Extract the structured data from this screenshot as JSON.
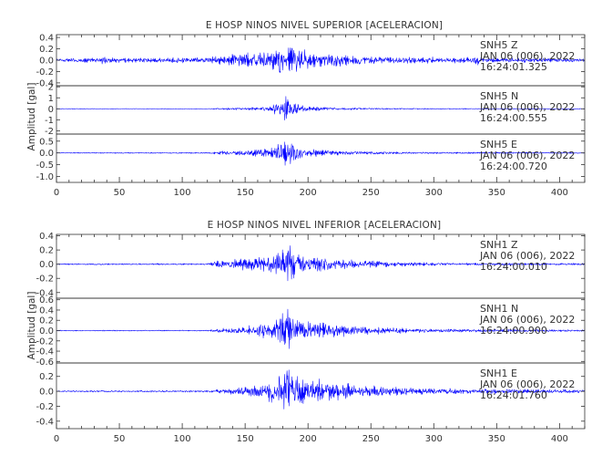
{
  "colors": {
    "trace": "#0000ff",
    "axis": "#333333",
    "text": "#333333",
    "background": "#ffffff"
  },
  "chart_data": [
    {
      "type": "line",
      "title": "E HOSP NINOS NIVEL SUPERIOR [ACELERACION]",
      "ylabel": "Amplitud [gal]",
      "xlim": [
        0,
        420
      ],
      "xticks": [
        0,
        50,
        100,
        150,
        200,
        250,
        300,
        350,
        400
      ],
      "grid": false,
      "series": [
        {
          "name": "SNH5   Z",
          "date": "JAN 06 (006), 2022",
          "time": "16:24:01.325",
          "ylim": [
            -0.45,
            0.45
          ],
          "yticks": [
            -0.4,
            -0.2,
            0.0,
            0.2,
            0.4
          ],
          "ytick_labels": [
            "-0.4",
            "-0.2",
            "0.0",
            "0.2",
            "0.4"
          ],
          "noise_level": 0.045,
          "envelope": [
            [
              0,
              1
            ],
            [
              35,
              1.2
            ],
            [
              38,
              2.6
            ],
            [
              41,
              1.2
            ],
            [
              120,
              1.2
            ],
            [
              130,
              2.4
            ],
            [
              150,
              3.2
            ],
            [
              165,
              4.5
            ],
            [
              180,
              7.5
            ],
            [
              190,
              6.8
            ],
            [
              200,
              4.6
            ],
            [
              215,
              3.4
            ],
            [
              240,
              2.3
            ],
            [
              270,
              1.6
            ],
            [
              330,
              1.4
            ],
            [
              335,
              2.8
            ],
            [
              340,
              1.3
            ],
            [
              420,
              1.0
            ]
          ]
        },
        {
          "name": "SNH5   N",
          "date": "JAN 06 (006), 2022",
          "time": "16:24:00.555",
          "ylim": [
            -2.3,
            2.1
          ],
          "yticks": [
            -2,
            -1,
            0,
            1,
            2
          ],
          "ytick_labels": [
            "-2",
            "-1",
            "0",
            "1",
            "2"
          ],
          "noise_level": 0.035,
          "envelope": [
            [
              0,
              1
            ],
            [
              120,
              1
            ],
            [
              130,
              2.5
            ],
            [
              150,
              4.5
            ],
            [
              170,
              8
            ],
            [
              178,
              28
            ],
            [
              181,
              55
            ],
            [
              185,
              24
            ],
            [
              200,
              9
            ],
            [
              220,
              5
            ],
            [
              250,
              2.5
            ],
            [
              300,
              1.5
            ],
            [
              420,
              1.0
            ]
          ]
        },
        {
          "name": "SNH5   E",
          "date": "JAN 06 (006), 2022",
          "time": "16:24:00.720",
          "ylim": [
            -1.25,
            0.8
          ],
          "yticks": [
            -1.0,
            -0.5,
            0.0,
            0.5
          ],
          "ytick_labels": [
            "-1.0",
            "-0.5",
            "0.0",
            "0.5"
          ],
          "noise_level": 0.02,
          "envelope": [
            [
              0,
              1.3
            ],
            [
              120,
              1.5
            ],
            [
              130,
              5
            ],
            [
              150,
              7
            ],
            [
              170,
              12
            ],
            [
              180,
              30
            ],
            [
              185,
              45
            ],
            [
              190,
              18
            ],
            [
              200,
              10
            ],
            [
              220,
              7
            ],
            [
              250,
              4
            ],
            [
              300,
              2.5
            ],
            [
              420,
              1.5
            ]
          ]
        }
      ]
    },
    {
      "type": "line",
      "title": "E HOSP NINOS NIVEL INFERIOR [ACELERACION]",
      "ylabel": "Amplitud [gal]",
      "xlim": [
        0,
        420
      ],
      "xticks": [
        0,
        50,
        100,
        150,
        200,
        250,
        300,
        350,
        400
      ],
      "grid": false,
      "series": [
        {
          "name": "SNH1   Z",
          "date": "JAN 06 (006), 2022",
          "time": "16:24:00.010",
          "ylim": [
            -0.48,
            0.42
          ],
          "yticks": [
            -0.4,
            -0.2,
            0.0,
            0.2,
            0.4
          ],
          "ytick_labels": [
            "-0.4",
            "-0.2",
            "0.0",
            "0.2",
            "0.4"
          ],
          "noise_level": 0.012,
          "envelope": [
            [
              0,
              1
            ],
            [
              120,
              1.2
            ],
            [
              127,
              5
            ],
            [
              140,
              8
            ],
            [
              160,
              10
            ],
            [
              175,
              16
            ],
            [
              180,
              22
            ],
            [
              185,
              30
            ],
            [
              190,
              18
            ],
            [
              200,
              13
            ],
            [
              220,
              9
            ],
            [
              250,
              5
            ],
            [
              280,
              3
            ],
            [
              330,
              2
            ],
            [
              420,
              1.5
            ]
          ]
        },
        {
          "name": "SNH1   N",
          "date": "JAN 06 (006), 2022",
          "time": "16:24:00.900",
          "ylim": [
            -0.63,
            0.63
          ],
          "yticks": [
            -0.6,
            -0.4,
            -0.2,
            0.0,
            0.2,
            0.4,
            0.6
          ],
          "ytick_labels": [
            "-0.6",
            "-0.4",
            "-0.2",
            "0.0",
            "0.2",
            "0.4",
            "0.6"
          ],
          "noise_level": 0.012,
          "envelope": [
            [
              0,
              1
            ],
            [
              120,
              1.2
            ],
            [
              130,
              4
            ],
            [
              150,
              8
            ],
            [
              170,
              16
            ],
            [
              178,
              32
            ],
            [
              183,
              45
            ],
            [
              190,
              28
            ],
            [
              200,
              20
            ],
            [
              220,
              14
            ],
            [
              250,
              8
            ],
            [
              280,
              5
            ],
            [
              330,
              3
            ],
            [
              420,
              2
            ]
          ]
        },
        {
          "name": "SNH1   E",
          "date": "JAN 06 (006), 2022",
          "time": "16:24:01.760",
          "ylim": [
            -0.5,
            0.38
          ],
          "yticks": [
            -0.4,
            -0.2,
            0.0,
            0.2
          ],
          "ytick_labels": [
            "-0.4",
            "-0.2",
            "0.0",
            "0.2"
          ],
          "noise_level": 0.012,
          "envelope": [
            [
              0,
              1
            ],
            [
              120,
              1.5
            ],
            [
              135,
              4
            ],
            [
              150,
              6
            ],
            [
              165,
              10
            ],
            [
              175,
              20
            ],
            [
              183,
              36
            ],
            [
              190,
              26
            ],
            [
              200,
              18
            ],
            [
              215,
              14
            ],
            [
              240,
              9
            ],
            [
              270,
              6
            ],
            [
              310,
              4
            ],
            [
              420,
              2.5
            ]
          ]
        }
      ]
    }
  ]
}
